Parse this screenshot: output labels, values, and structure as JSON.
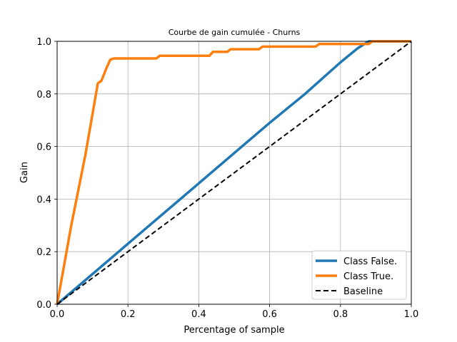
{
  "chart_data": {
    "type": "line",
    "title": "Courbe de gain cumulée - Churns",
    "xlabel": "Percentage of sample",
    "ylabel": "Gain",
    "xlim": [
      0,
      1
    ],
    "ylim": [
      0,
      1
    ],
    "grid": true,
    "legend_position": "lower-right",
    "x_ticks": [
      "0.0",
      "0.2",
      "0.4",
      "0.6",
      "0.8",
      "1.0"
    ],
    "y_ticks": [
      "0.0",
      "0.2",
      "0.4",
      "0.6",
      "0.8",
      "1.0"
    ],
    "series": [
      {
        "name": "Class False.",
        "color": "#1f77b4",
        "style": "solid",
        "points": [
          [
            0,
            0
          ],
          [
            0.1,
            0.115
          ],
          [
            0.2,
            0.23
          ],
          [
            0.3,
            0.345
          ],
          [
            0.4,
            0.46
          ],
          [
            0.5,
            0.575
          ],
          [
            0.6,
            0.69
          ],
          [
            0.7,
            0.8
          ],
          [
            0.8,
            0.92
          ],
          [
            0.85,
            0.975
          ],
          [
            0.88,
            1.0
          ],
          [
            1.0,
            1.0
          ]
        ]
      },
      {
        "name": "Class True.",
        "color": "#ff7f0e",
        "style": "solid",
        "points": [
          [
            0,
            0
          ],
          [
            0.04,
            0.3
          ],
          [
            0.08,
            0.57
          ],
          [
            0.115,
            0.84
          ],
          [
            0.125,
            0.85
          ],
          [
            0.14,
            0.9
          ],
          [
            0.15,
            0.93
          ],
          [
            0.16,
            0.935
          ],
          [
            0.28,
            0.935
          ],
          [
            0.29,
            0.945
          ],
          [
            0.43,
            0.945
          ],
          [
            0.44,
            0.96
          ],
          [
            0.48,
            0.96
          ],
          [
            0.49,
            0.97
          ],
          [
            0.57,
            0.97
          ],
          [
            0.58,
            0.98
          ],
          [
            0.73,
            0.98
          ],
          [
            0.74,
            0.99
          ],
          [
            0.88,
            0.99
          ],
          [
            0.89,
            1.0
          ],
          [
            1.0,
            1.0
          ]
        ]
      },
      {
        "name": "Baseline",
        "color": "#000000",
        "style": "dashed",
        "points": [
          [
            0,
            0
          ],
          [
            1,
            1
          ]
        ]
      }
    ]
  }
}
